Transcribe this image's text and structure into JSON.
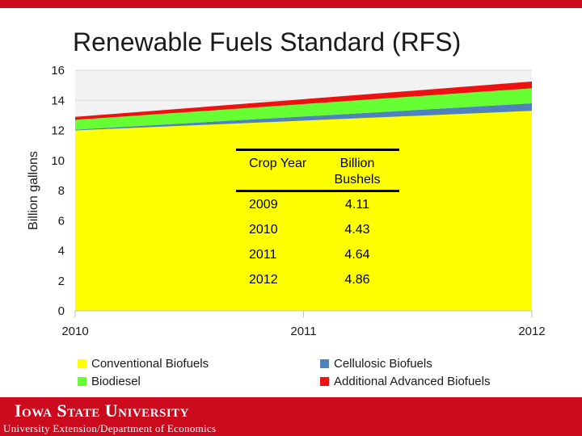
{
  "slide": {
    "title": "Renewable Fuels Standard (RFS)"
  },
  "chart_data": {
    "type": "area",
    "stacked": true,
    "title": "",
    "xlabel": "",
    "ylabel": "Billion gallons",
    "x": [
      2010,
      2012
    ],
    "x_ticks": [
      "2010",
      "2011",
      "2012"
    ],
    "ylim": [
      0,
      16
    ],
    "y_ticks": [
      "0",
      "2",
      "4",
      "6",
      "8",
      "10",
      "12",
      "14",
      "16"
    ],
    "grid": "horizontal",
    "legend_position": "bottom",
    "series": [
      {
        "name": "Conventional Biofuels",
        "values": [
          12.0,
          13.3
        ],
        "color": "#ffff00"
      },
      {
        "name": "Cellulosic Biofuels",
        "values": [
          0.05,
          0.5
        ],
        "color": "#4f81bd"
      },
      {
        "name": "Biodiesel",
        "values": [
          0.65,
          1.0
        ],
        "color": "#66ff33"
      },
      {
        "name": "Additional Advanced Biofuels",
        "values": [
          0.2,
          0.45
        ],
        "color": "#ee1111"
      }
    ]
  },
  "table": {
    "headers": [
      "Crop Year",
      "Billion Bushels"
    ],
    "rows": [
      [
        "2009",
        "4.11"
      ],
      [
        "2010",
        "4.43"
      ],
      [
        "2011",
        "4.64"
      ],
      [
        "2012",
        "4.86"
      ]
    ]
  },
  "legend": {
    "items": [
      {
        "label": "Conventional Biofuels",
        "color": "#ffff00"
      },
      {
        "label": "Cellulosic Biofuels",
        "color": "#4f81bd"
      },
      {
        "label": "Biodiesel",
        "color": "#66ff33"
      },
      {
        "label": "Additional Advanced Biofuels",
        "color": "#ee1111"
      }
    ]
  },
  "footer": {
    "university": "Iowa State University",
    "department": "University Extension/Department of Economics"
  },
  "colors": {
    "brand_red": "#cc0a1e"
  }
}
